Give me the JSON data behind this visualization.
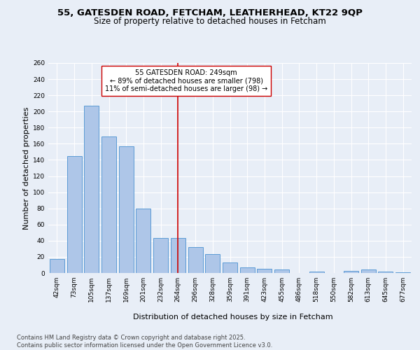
{
  "title_line1": "55, GATESDEN ROAD, FETCHAM, LEATHERHEAD, KT22 9QP",
  "title_line2": "Size of property relative to detached houses in Fetcham",
  "xlabel": "Distribution of detached houses by size in Fetcham",
  "ylabel": "Number of detached properties",
  "categories": [
    "42sqm",
    "73sqm",
    "105sqm",
    "137sqm",
    "169sqm",
    "201sqm",
    "232sqm",
    "264sqm",
    "296sqm",
    "328sqm",
    "359sqm",
    "391sqm",
    "423sqm",
    "455sqm",
    "486sqm",
    "518sqm",
    "550sqm",
    "582sqm",
    "613sqm",
    "645sqm",
    "677sqm"
  ],
  "values": [
    17,
    145,
    207,
    169,
    157,
    80,
    43,
    43,
    32,
    23,
    13,
    7,
    5,
    4,
    0,
    2,
    0,
    3,
    4,
    2,
    1
  ],
  "bar_color": "#aec6e8",
  "bar_edge_color": "#5b9bd5",
  "vline_color": "#cc0000",
  "annotation_title": "55 GATESDEN ROAD: 249sqm",
  "annotation_line2": "← 89% of detached houses are smaller (798)",
  "annotation_line3": "11% of semi-detached houses are larger (98) →",
  "annotation_box_color": "#ffffff",
  "annotation_box_edge": "#cc0000",
  "ylim": [
    0,
    260
  ],
  "yticks": [
    0,
    20,
    40,
    60,
    80,
    100,
    120,
    140,
    160,
    180,
    200,
    220,
    240,
    260
  ],
  "bg_color": "#e8eef7",
  "plot_bg_color": "#e8eef7",
  "footer_line1": "Contains HM Land Registry data © Crown copyright and database right 2025.",
  "footer_line2": "Contains public sector information licensed under the Open Government Licence v3.0.",
  "title_fontsize": 9.5,
  "subtitle_fontsize": 8.5,
  "axis_label_fontsize": 8,
  "tick_fontsize": 6.5,
  "annotation_fontsize": 7,
  "footer_fontsize": 6
}
